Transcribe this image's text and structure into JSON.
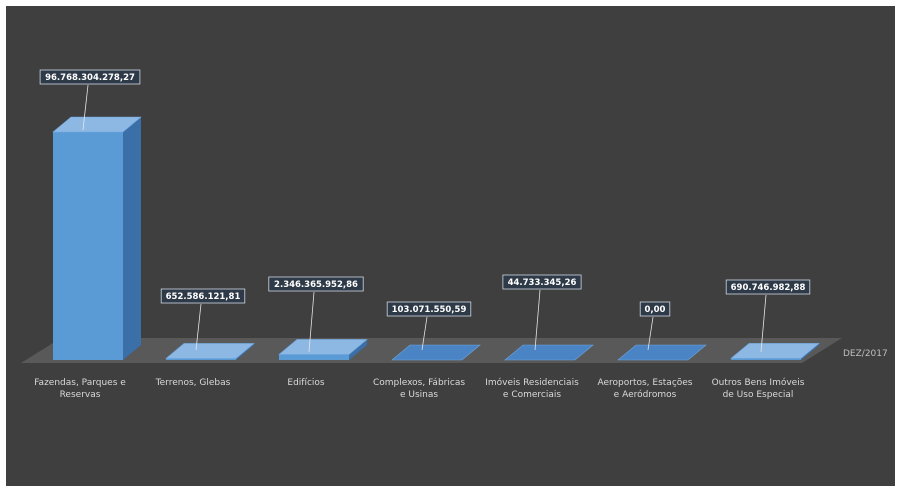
{
  "chart_data": {
    "type": "bar",
    "categories": [
      [
        "Fazendas, Parques e",
        "Reservas"
      ],
      [
        "Terrenos, Glebas"
      ],
      [
        "Edifícios"
      ],
      [
        "Complexos, Fábricas",
        "e Usinas"
      ],
      [
        "Imóveis Residenciais",
        "e Comerciais"
      ],
      [
        "Aeroportos, Estações",
        "e Aeródromos"
      ],
      [
        "Outros Bens Imóveis",
        "de Uso Especial"
      ]
    ],
    "series": [
      {
        "name": "DEZ/2017",
        "values": [
          96768304278.27,
          652586121.81,
          2346365952.86,
          103071550.59,
          44733345.26,
          0,
          690746982.88
        ],
        "labels": [
          "96.768.304.278,27",
          "652.586.121,81",
          "2.346.365.952,86",
          "103.071.550,59",
          "44.733.345,26",
          "0,00",
          "690.746.982,88"
        ]
      }
    ],
    "ylim": [
      0,
      96768304278.27
    ],
    "grid": false,
    "legend": "none",
    "colors": {
      "bar_front": "#5b9bd5",
      "bar_side": "#3a6fa8",
      "bar_top": "#8db8e4",
      "floor": "#595959",
      "background": "#3f3f3f"
    }
  }
}
